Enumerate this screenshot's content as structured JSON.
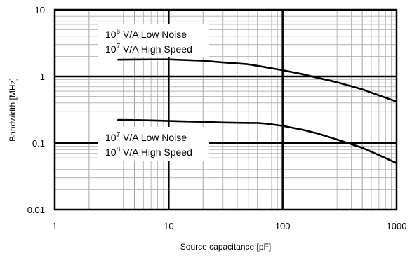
{
  "chart_data": {
    "type": "line",
    "title": "",
    "xlabel": "Source capacitance [pF]",
    "ylabel": "Bandwidth [MHz]",
    "xscale": "log",
    "yscale": "log",
    "xlim": [
      1,
      1000
    ],
    "ylim": [
      0.01,
      10
    ],
    "grid": true,
    "x_tick_labels": [
      "1",
      "10",
      "100",
      "1000"
    ],
    "y_tick_labels": [
      "0.01",
      "0.1",
      "1",
      "10"
    ],
    "annotations": [
      {
        "lines": [
          {
            "base": "10",
            "sup": "6",
            "rest": " V/A Low Noise"
          },
          {
            "base": "10",
            "sup": "7",
            "rest": " V/A High Speed"
          }
        ]
      },
      {
        "lines": [
          {
            "base": "10",
            "sup": "7",
            "rest": " V/A Low Noise"
          },
          {
            "base": "10",
            "sup": "8",
            "rest": " V/A High Speed"
          }
        ]
      }
    ],
    "series": [
      {
        "x": [
          3.6,
          5,
          7,
          10,
          20,
          30,
          50,
          70,
          100,
          150,
          200,
          300,
          500,
          700,
          1000
        ],
        "y": [
          1.78,
          1.79,
          1.8,
          1.8,
          1.72,
          1.62,
          1.52,
          1.38,
          1.24,
          1.08,
          0.96,
          0.82,
          0.64,
          0.52,
          0.42
        ]
      },
      {
        "x": [
          3.6,
          5,
          7,
          10,
          20,
          30,
          50,
          60,
          70,
          100,
          150,
          200,
          300,
          500,
          700,
          1000
        ],
        "y": [
          0.222,
          0.221,
          0.218,
          0.214,
          0.208,
          0.203,
          0.2,
          0.2,
          0.196,
          0.181,
          0.158,
          0.14,
          0.113,
          0.085,
          0.066,
          0.05
        ]
      }
    ]
  }
}
